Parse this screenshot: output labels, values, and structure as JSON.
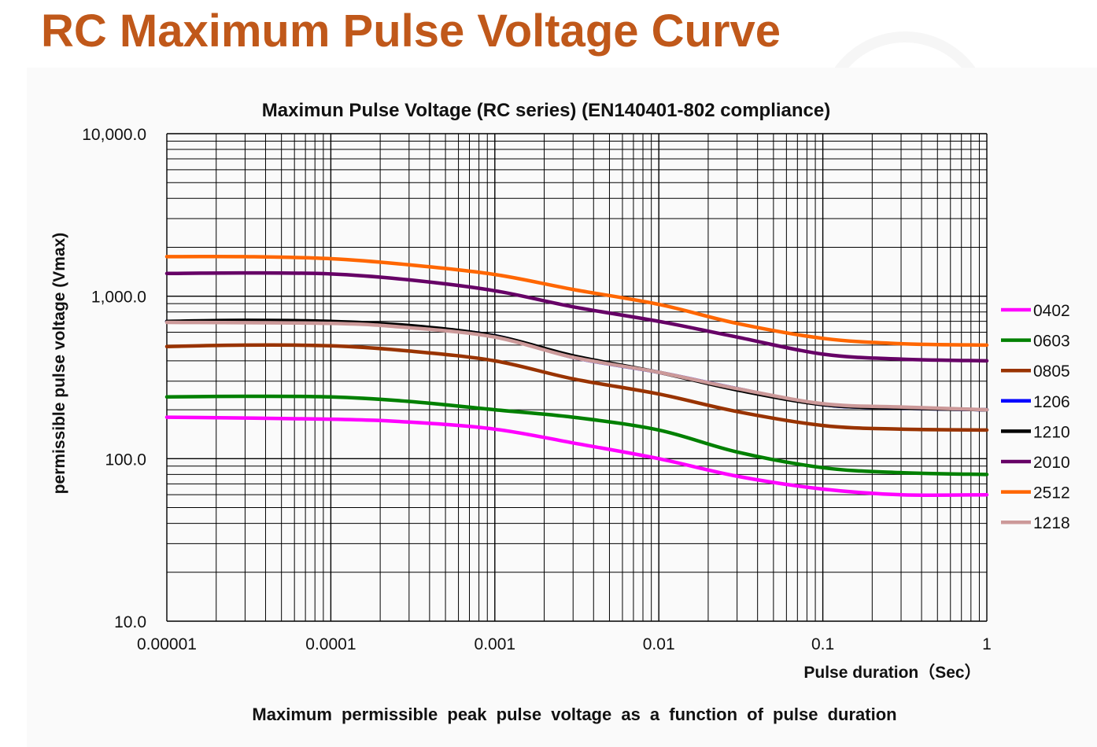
{
  "page": {
    "title": "RC Maximum Pulse Voltage Curve",
    "caption": "Maximum permissible peak pulse voltage as a function of pulse duration"
  },
  "chart_data": {
    "type": "line",
    "title": "Maximun Pulse Voltage (RC series) (EN140401-802 compliance)",
    "xlabel": "Pulse duration（Sec）",
    "ylabel": "permissible pulse voltage (Vmax)",
    "xscale": "log",
    "yscale": "log",
    "xlim": [
      1e-05,
      1
    ],
    "ylim": [
      10,
      10000
    ],
    "x_ticks": [
      {
        "value": 1e-05,
        "label": "0.00001"
      },
      {
        "value": 0.0001,
        "label": "0.0001"
      },
      {
        "value": 0.001,
        "label": "0.001"
      },
      {
        "value": 0.01,
        "label": "0.01"
      },
      {
        "value": 0.1,
        "label": "0.1"
      },
      {
        "value": 1,
        "label": "1"
      }
    ],
    "y_ticks": [
      {
        "value": 10,
        "label": "10.0"
      },
      {
        "value": 100,
        "label": "100.0"
      },
      {
        "value": 1000,
        "label": "1,000.0"
      },
      {
        "value": 10000,
        "label": "10,000.0"
      }
    ],
    "grid": true,
    "legend_position": "right",
    "series": [
      {
        "name": "0402",
        "color": "#ff00ff",
        "points": [
          [
            1e-05,
            180
          ],
          [
            0.0001,
            175
          ],
          [
            0.0003,
            168
          ],
          [
            0.001,
            152
          ],
          [
            0.003,
            125
          ],
          [
            0.01,
            100
          ],
          [
            0.03,
            78
          ],
          [
            0.1,
            65
          ],
          [
            0.3,
            60
          ],
          [
            1,
            60
          ]
        ]
      },
      {
        "name": "0603",
        "color": "#008000",
        "points": [
          [
            1e-05,
            240
          ],
          [
            3e-05,
            242
          ],
          [
            0.0001,
            240
          ],
          [
            0.0003,
            225
          ],
          [
            0.001,
            200
          ],
          [
            0.003,
            180
          ],
          [
            0.01,
            150
          ],
          [
            0.03,
            110
          ],
          [
            0.1,
            88
          ],
          [
            0.3,
            82
          ],
          [
            1,
            80
          ]
        ]
      },
      {
        "name": "0805",
        "color": "#993300",
        "points": [
          [
            1e-05,
            490
          ],
          [
            3e-05,
            500
          ],
          [
            0.0001,
            495
          ],
          [
            0.0003,
            460
          ],
          [
            0.001,
            400
          ],
          [
            0.003,
            310
          ],
          [
            0.01,
            250
          ],
          [
            0.03,
            195
          ],
          [
            0.1,
            160
          ],
          [
            0.3,
            152
          ],
          [
            1,
            150
          ]
        ]
      },
      {
        "name": "1206",
        "color": "#0000ff",
        "points": [
          [
            1e-05,
            700
          ],
          [
            0.0001,
            690
          ],
          [
            0.0003,
            650
          ],
          [
            0.001,
            570
          ],
          [
            0.003,
            420
          ],
          [
            0.01,
            340
          ],
          [
            0.03,
            270
          ],
          [
            0.1,
            215
          ],
          [
            0.3,
            205
          ],
          [
            1,
            200
          ]
        ]
      },
      {
        "name": "1210",
        "color": "#000000",
        "points": [
          [
            1e-05,
            700
          ],
          [
            3e-05,
            710
          ],
          [
            0.0001,
            700
          ],
          [
            0.0003,
            660
          ],
          [
            0.001,
            570
          ],
          [
            0.003,
            430
          ],
          [
            0.01,
            340
          ],
          [
            0.03,
            265
          ],
          [
            0.1,
            215
          ],
          [
            0.3,
            205
          ],
          [
            1,
            200
          ]
        ]
      },
      {
        "name": "2010",
        "color": "#660066",
        "points": [
          [
            1e-05,
            1380
          ],
          [
            3e-05,
            1390
          ],
          [
            0.0001,
            1370
          ],
          [
            0.0003,
            1260
          ],
          [
            0.001,
            1080
          ],
          [
            0.003,
            860
          ],
          [
            0.01,
            700
          ],
          [
            0.03,
            560
          ],
          [
            0.1,
            440
          ],
          [
            0.3,
            410
          ],
          [
            1,
            400
          ]
        ]
      },
      {
        "name": "2512",
        "color": "#ff6600",
        "points": [
          [
            1e-05,
            1750
          ],
          [
            3e-05,
            1750
          ],
          [
            0.0001,
            1700
          ],
          [
            0.0003,
            1560
          ],
          [
            0.001,
            1360
          ],
          [
            0.003,
            1100
          ],
          [
            0.01,
            890
          ],
          [
            0.03,
            680
          ],
          [
            0.1,
            550
          ],
          [
            0.3,
            510
          ],
          [
            1,
            500
          ]
        ]
      },
      {
        "name": "1218",
        "color": "#cc9999",
        "points": [
          [
            1e-05,
            690
          ],
          [
            0.0001,
            680
          ],
          [
            0.0003,
            640
          ],
          [
            0.001,
            560
          ],
          [
            0.003,
            420
          ],
          [
            0.01,
            340
          ],
          [
            0.03,
            270
          ],
          [
            0.1,
            218
          ],
          [
            0.3,
            208
          ],
          [
            1,
            200
          ]
        ]
      }
    ]
  }
}
